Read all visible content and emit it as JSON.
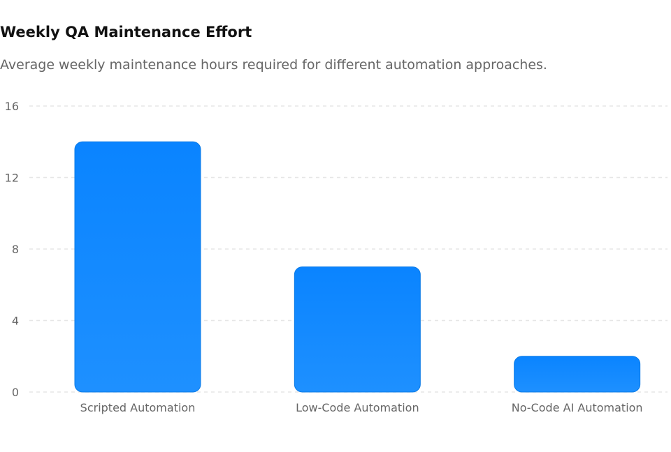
{
  "chart_data": {
    "type": "bar",
    "title": "Weekly QA Maintenance Effort",
    "subtitle": "Average weekly maintenance hours required for different automation approaches.",
    "categories": [
      "Scripted Automation",
      "Low-Code Automation",
      "No-Code AI Automation"
    ],
    "values": [
      14,
      7,
      2
    ],
    "ylim": [
      0,
      16
    ],
    "yticks": [
      0,
      4,
      8,
      12,
      16
    ],
    "grid": true,
    "legend": "none",
    "colors": {
      "bar_top": "#0a84ff",
      "bar_bottom": "#1e90ff",
      "bar_stroke": "#0a7ae6",
      "grid": "#e6e6e6",
      "text": "#666666"
    }
  }
}
